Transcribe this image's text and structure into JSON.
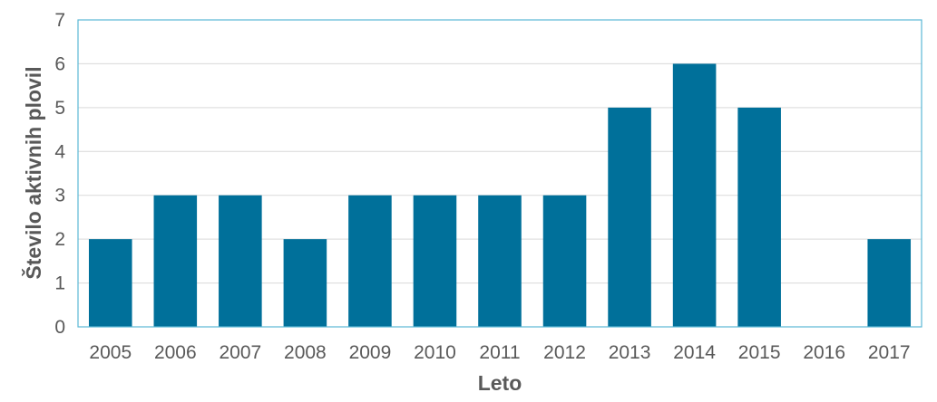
{
  "chart_data": {
    "type": "bar",
    "categories": [
      "2005",
      "2006",
      "2007",
      "2008",
      "2009",
      "2010",
      "2011",
      "2012",
      "2013",
      "2014",
      "2015",
      "2016",
      "2017"
    ],
    "values": [
      2,
      3,
      3,
      2,
      3,
      3,
      3,
      3,
      5,
      6,
      5,
      0,
      2
    ],
    "title": "",
    "xlabel": "Leto",
    "ylabel": "Število aktivnih plovil",
    "ylim": [
      0,
      7
    ],
    "yticks": [
      "0",
      "1",
      "2",
      "3",
      "4",
      "5",
      "6",
      "7"
    ],
    "grid": true,
    "legend": "none",
    "colors": {
      "bar": "#00709A",
      "grid": "#D9D9D9",
      "frame": "#5BB8D6",
      "text": "#595959"
    }
  }
}
